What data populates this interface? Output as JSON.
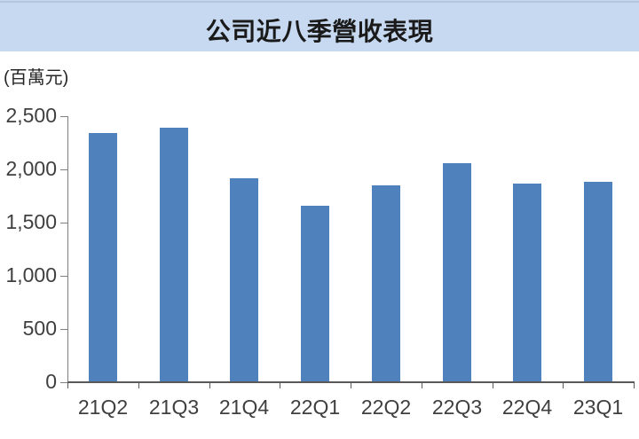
{
  "banner": {
    "background": "#C7D9F0",
    "top_strip_color": "#B3C6E0",
    "title_color": "#1a1a1a"
  },
  "chart_data": {
    "type": "bar",
    "title": "公司近八季營收表現",
    "unit_label": "(百萬元)",
    "categories": [
      "21Q2",
      "21Q3",
      "21Q4",
      "22Q1",
      "22Q2",
      "22Q3",
      "22Q4",
      "23Q1"
    ],
    "values": [
      2345,
      2390,
      1920,
      1660,
      1850,
      2060,
      1870,
      1885
    ],
    "ylim": [
      0,
      2500
    ],
    "y_tick_step": 500,
    "y_ticks": [
      {
        "value": 0,
        "label": "0"
      },
      {
        "value": 500,
        "label": "500"
      },
      {
        "value": 1000,
        "label": "1,000"
      },
      {
        "value": 1500,
        "label": "1,500"
      },
      {
        "value": 2000,
        "label": "2,000"
      },
      {
        "value": 2500,
        "label": "2,500"
      }
    ],
    "grid": false,
    "legend_position": "none",
    "bar_color": "#4F81BD",
    "y_axis_color": "#7F7F7F",
    "x_axis_color": "#595959",
    "label_color": "#3f3f3f"
  }
}
